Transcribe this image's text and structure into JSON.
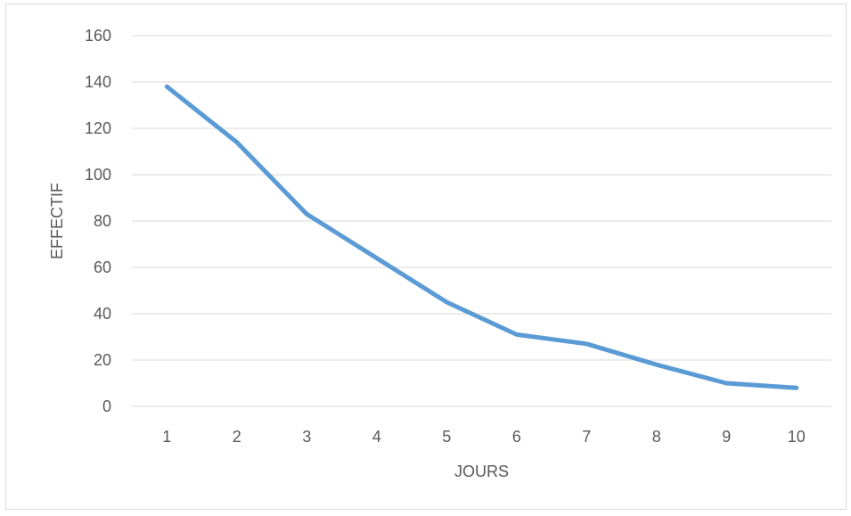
{
  "chart_data": {
    "type": "line",
    "title": "",
    "xlabel": "JOURS",
    "ylabel": "EFFECTIF",
    "x": [
      1,
      2,
      3,
      4,
      5,
      6,
      7,
      8,
      9,
      10
    ],
    "series": [
      {
        "values": [
          138,
          114,
          83,
          64,
          45,
          31,
          27,
          18,
          10,
          8
        ]
      }
    ],
    "ylim": [
      0,
      160
    ],
    "yticks": [
      0,
      20,
      40,
      60,
      80,
      100,
      120,
      140,
      160
    ],
    "grid": true,
    "legend": "none",
    "colors": {
      "line": "#5b9bd5",
      "grid": "#d9d9d9",
      "text": "#595959"
    }
  }
}
